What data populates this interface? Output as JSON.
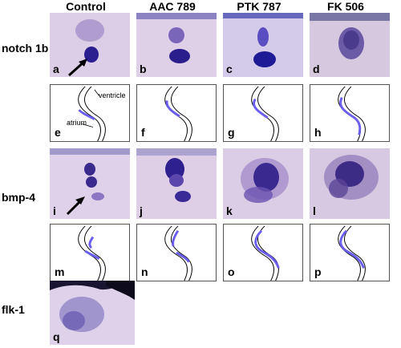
{
  "columns": [
    "Control",
    "AAC 789",
    "PTK 787",
    "FK 506"
  ],
  "rows": [
    {
      "label": "notch 1b",
      "panels": [
        "a",
        "b",
        "c",
        "d"
      ]
    },
    {
      "label": "",
      "panels": [
        "e",
        "f",
        "g",
        "h"
      ]
    },
    {
      "label": "bmp-4",
      "panels": [
        "i",
        "j",
        "k",
        "l"
      ]
    },
    {
      "label": "",
      "panels": [
        "m",
        "n",
        "o",
        "p"
      ]
    },
    {
      "label": "flk-1",
      "panels": [
        "q"
      ]
    }
  ],
  "annotations": {
    "ventricle": "ventricle",
    "atrium": "atrium"
  },
  "colors": {
    "stain": "#2b1e8f",
    "schematic_band": "#6a5df0",
    "tissue": "#d8c9e4"
  }
}
